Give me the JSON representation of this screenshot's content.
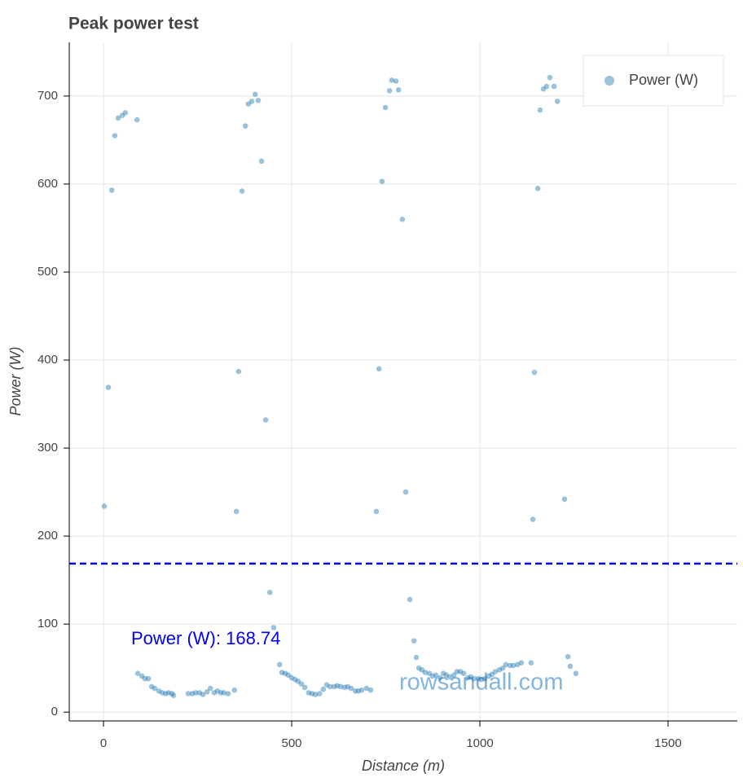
{
  "chart_data": {
    "type": "scatter",
    "title": "Peak power test",
    "x_label": "Distance (m)",
    "y_label": "Power (W)",
    "xlim": [
      -91,
      1684
    ],
    "ylim": [
      -10,
      761
    ],
    "xticks": [
      0,
      500,
      1000,
      1500
    ],
    "yticks": [
      0,
      100,
      200,
      300,
      400,
      500,
      600,
      700
    ],
    "grid": true,
    "legend": "top_right",
    "hline": {
      "value": 168.74,
      "label": "Power (W): 168.74",
      "color": "#0000ff"
    },
    "watermark": "rowsandall.com",
    "series": [
      {
        "name": "Power (W)",
        "color": "#1f77b4",
        "x": [
          2,
          13,
          22,
          30,
          39,
          50,
          58,
          89,
          91,
          102,
          110,
          119,
          128,
          136,
          147,
          156,
          165,
          173,
          182,
          186,
          225,
          236,
          245,
          255,
          264,
          275,
          284,
          294,
          303,
          312,
          320,
          331,
          348,
          353,
          359,
          368,
          377,
          385,
          394,
          403,
          411,
          420,
          431,
          442,
          452,
          468,
          474,
          483,
          491,
          500,
          509,
          517,
          526,
          535,
          545,
          554,
          563,
          574,
          584,
          593,
          602,
          613,
          621,
          630,
          641,
          649,
          658,
          669,
          677,
          686,
          699,
          710,
          725,
          732,
          740,
          749,
          760,
          766,
          777,
          784,
          794,
          803,
          814,
          825,
          831,
          838,
          846,
          855,
          866,
          874,
          883,
          894,
          903,
          911,
          920,
          931,
          939,
          948,
          957,
          968,
          976,
          985,
          996,
          1004,
          1013,
          1024,
          1032,
          1041,
          1052,
          1061,
          1069,
          1080,
          1089,
          1100,
          1110,
          1136,
          1141,
          1145,
          1154,
          1160,
          1169,
          1177,
          1186,
          1197,
          1206,
          1225,
          1234,
          1240,
          1255
        ],
        "values": [
          234,
          369,
          593,
          655,
          675,
          678,
          681,
          673,
          44,
          41,
          38,
          38,
          29,
          27,
          24,
          22,
          21,
          22,
          21,
          19,
          21,
          21,
          22,
          22,
          20,
          23,
          27,
          22,
          24,
          22,
          22,
          21,
          25,
          228,
          387,
          592,
          666,
          691,
          694,
          702,
          695,
          626,
          332,
          136,
          96,
          54,
          45,
          44,
          42,
          39,
          37,
          35,
          32,
          28,
          22,
          21,
          20,
          21,
          26,
          31,
          29,
          29,
          30,
          29,
          28,
          29,
          27,
          24,
          24,
          25,
          27,
          25,
          228,
          390,
          603,
          687,
          706,
          718,
          717,
          707,
          560,
          250,
          128,
          81,
          62,
          50,
          48,
          45,
          44,
          41,
          42,
          39,
          44,
          42,
          40,
          42,
          46,
          46,
          44,
          39,
          40,
          38,
          38,
          37,
          38,
          41,
          43,
          46,
          48,
          50,
          54,
          53,
          53,
          54,
          56,
          56,
          219,
          386,
          595,
          684,
          708,
          711,
          721,
          711,
          694,
          242,
          63,
          52,
          44
        ]
      }
    ]
  }
}
